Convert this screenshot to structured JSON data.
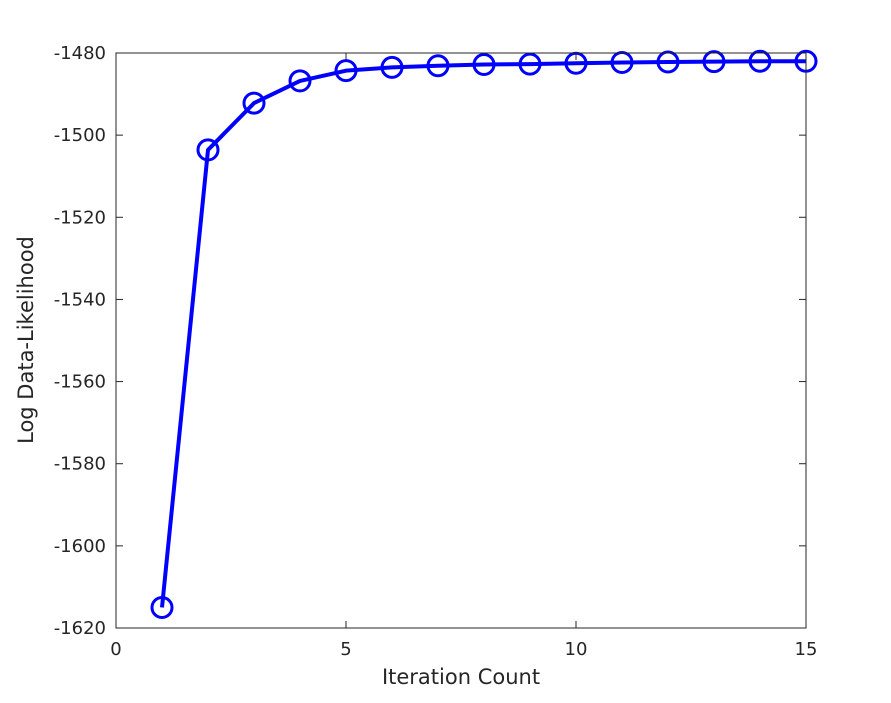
{
  "chart_data": {
    "type": "line",
    "title": "",
    "xlabel": "Iteration Count",
    "ylabel": "Log Data-Likelihood",
    "xlim": [
      0,
      15
    ],
    "ylim": [
      -1620,
      -1480
    ],
    "xticks": [
      0,
      5,
      10,
      15
    ],
    "yticks": [
      -1620,
      -1600,
      -1580,
      -1560,
      -1540,
      -1520,
      -1500,
      -1480
    ],
    "x": [
      1,
      2,
      3,
      4,
      5,
      6,
      7,
      8,
      9,
      10,
      11,
      12,
      13,
      14,
      15
    ],
    "series": [
      {
        "values": [
          -1615,
          -1503.6,
          -1492.2,
          -1486.8,
          -1484.3,
          -1483.5,
          -1483.1,
          -1482.8,
          -1482.7,
          -1482.5,
          -1482.3,
          -1482.2,
          -1482.1,
          -1482.0,
          -1482.0
        ],
        "color": "#0000ff",
        "marker": "circle"
      }
    ],
    "grid": false,
    "legend": "none"
  }
}
